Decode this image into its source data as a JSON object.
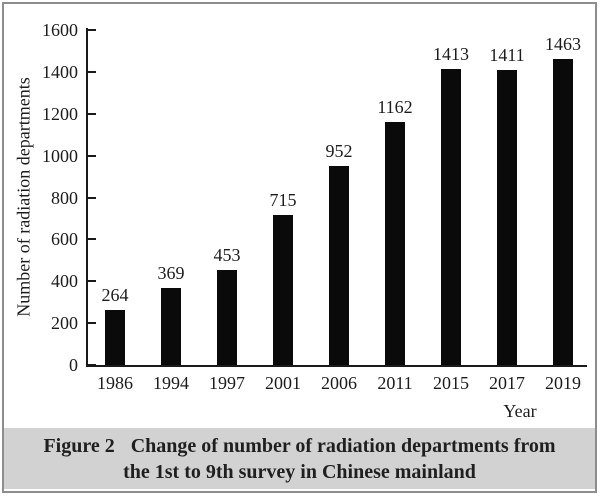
{
  "chart_data": {
    "type": "bar",
    "categories": [
      "1986",
      "1994",
      "1997",
      "2001",
      "2006",
      "2011",
      "2015",
      "2017",
      "2019"
    ],
    "values": [
      264,
      369,
      453,
      715,
      952,
      1162,
      1413,
      1411,
      1463
    ],
    "title": "",
    "xlabel": "Year",
    "ylabel": "Number of radiation departments",
    "ylim": [
      0,
      1600
    ],
    "yticks": [
      0,
      200,
      400,
      600,
      800,
      1000,
      1200,
      1400,
      1600
    ],
    "grid": false,
    "legend": null,
    "data_labels": true,
    "bar_color": "#0a0a0a"
  },
  "figure": {
    "caption_label": "Figure 2",
    "caption_line1": "Change of number of radiation departments from",
    "caption_line2": "the 1st to 9th survey in Chinese mainland"
  },
  "colors": {
    "caption_bg": "#d2d2d2",
    "frame_border": "#8d8d8d",
    "axis": "#1a1a1a",
    "bar": "#0a0a0a",
    "background": "#ffffff"
  }
}
